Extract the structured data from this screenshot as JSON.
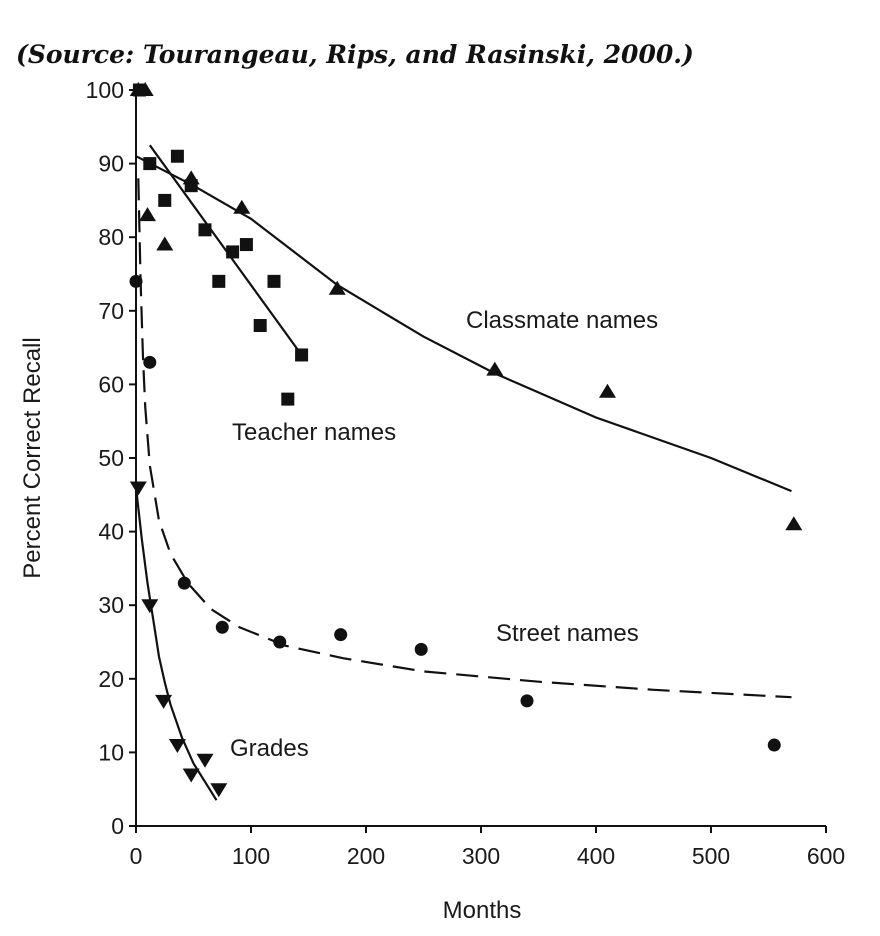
{
  "source_text": "(Source: Tourangeau, Rips, and Rasinski, 2000.)",
  "colors": {
    "ink": "#111111",
    "background": "#ffffff"
  },
  "chart_data": {
    "type": "scatter",
    "xlabel": "Months",
    "ylabel": "Percent Correct Recall",
    "xlim": [
      0,
      600
    ],
    "ylim": [
      0,
      100
    ],
    "xticks": [
      0,
      100,
      200,
      300,
      400,
      500,
      600
    ],
    "yticks": [
      0,
      10,
      20,
      30,
      40,
      50,
      60,
      70,
      80,
      90,
      100
    ],
    "grid": false,
    "series": [
      {
        "name": "Classmate names",
        "marker": "triangle-up",
        "points": [
          [
            2,
            100
          ],
          [
            8,
            100
          ],
          [
            10,
            83
          ],
          [
            25,
            79
          ],
          [
            48,
            88
          ],
          [
            92,
            84
          ],
          [
            175,
            73
          ],
          [
            312,
            62
          ],
          [
            410,
            59
          ],
          [
            572,
            41
          ]
        ],
        "fit": {
          "style": "solid",
          "points": [
            [
              0,
              91
            ],
            [
              50,
              87
            ],
            [
              100,
              82.5
            ],
            [
              175,
              73.5
            ],
            [
              250,
              66.5
            ],
            [
              312,
              61.5
            ],
            [
              400,
              55.5
            ],
            [
              500,
              50
            ],
            [
              570,
              45.5
            ]
          ]
        }
      },
      {
        "name": "Teacher names",
        "marker": "square",
        "points": [
          [
            3,
            100
          ],
          [
            12,
            90
          ],
          [
            25,
            85
          ],
          [
            36,
            91
          ],
          [
            48,
            87
          ],
          [
            60,
            81
          ],
          [
            72,
            74
          ],
          [
            84,
            78
          ],
          [
            96,
            79
          ],
          [
            108,
            68
          ],
          [
            120,
            74
          ],
          [
            132,
            58
          ],
          [
            144,
            64
          ]
        ],
        "fit": {
          "style": "solid",
          "points": [
            [
              12,
              92.5
            ],
            [
              144,
              64
            ]
          ]
        }
      },
      {
        "name": "Street names",
        "marker": "circle",
        "points": [
          [
            0,
            74
          ],
          [
            12,
            63
          ],
          [
            42,
            33
          ],
          [
            75,
            27
          ],
          [
            125,
            25
          ],
          [
            178,
            26
          ],
          [
            248,
            24
          ],
          [
            340,
            17
          ],
          [
            555,
            11
          ]
        ],
        "fit": {
          "style": "dashed",
          "points": [
            [
              2,
              88
            ],
            [
              4,
              74
            ],
            [
              6,
              64
            ],
            [
              8,
              57
            ],
            [
              12,
              49
            ],
            [
              20,
              41.5
            ],
            [
              30,
              37
            ],
            [
              45,
              33
            ],
            [
              65,
              29.5
            ],
            [
              90,
              27
            ],
            [
              130,
              24.5
            ],
            [
              180,
              22.8
            ],
            [
              250,
              21
            ],
            [
              350,
              19.6
            ],
            [
              450,
              18.5
            ],
            [
              570,
              17.5
            ]
          ]
        }
      },
      {
        "name": "Grades",
        "marker": "triangle-down",
        "points": [
          [
            2,
            46
          ],
          [
            12,
            30
          ],
          [
            24,
            17
          ],
          [
            36,
            11
          ],
          [
            48,
            7
          ],
          [
            60,
            9
          ],
          [
            72,
            5
          ]
        ],
        "fit": {
          "style": "solid",
          "points": [
            [
              0,
              46
            ],
            [
              5,
              39
            ],
            [
              10,
              33
            ],
            [
              15,
              28
            ],
            [
              20,
              23
            ],
            [
              25,
              19.5
            ],
            [
              30,
              16.5
            ],
            [
              40,
              12
            ],
            [
              50,
              8.5
            ],
            [
              60,
              6
            ],
            [
              70,
              3.5
            ]
          ]
        }
      }
    ],
    "annotations": [
      "Classmate names",
      "Teacher names",
      "Street names",
      "Grades"
    ]
  }
}
